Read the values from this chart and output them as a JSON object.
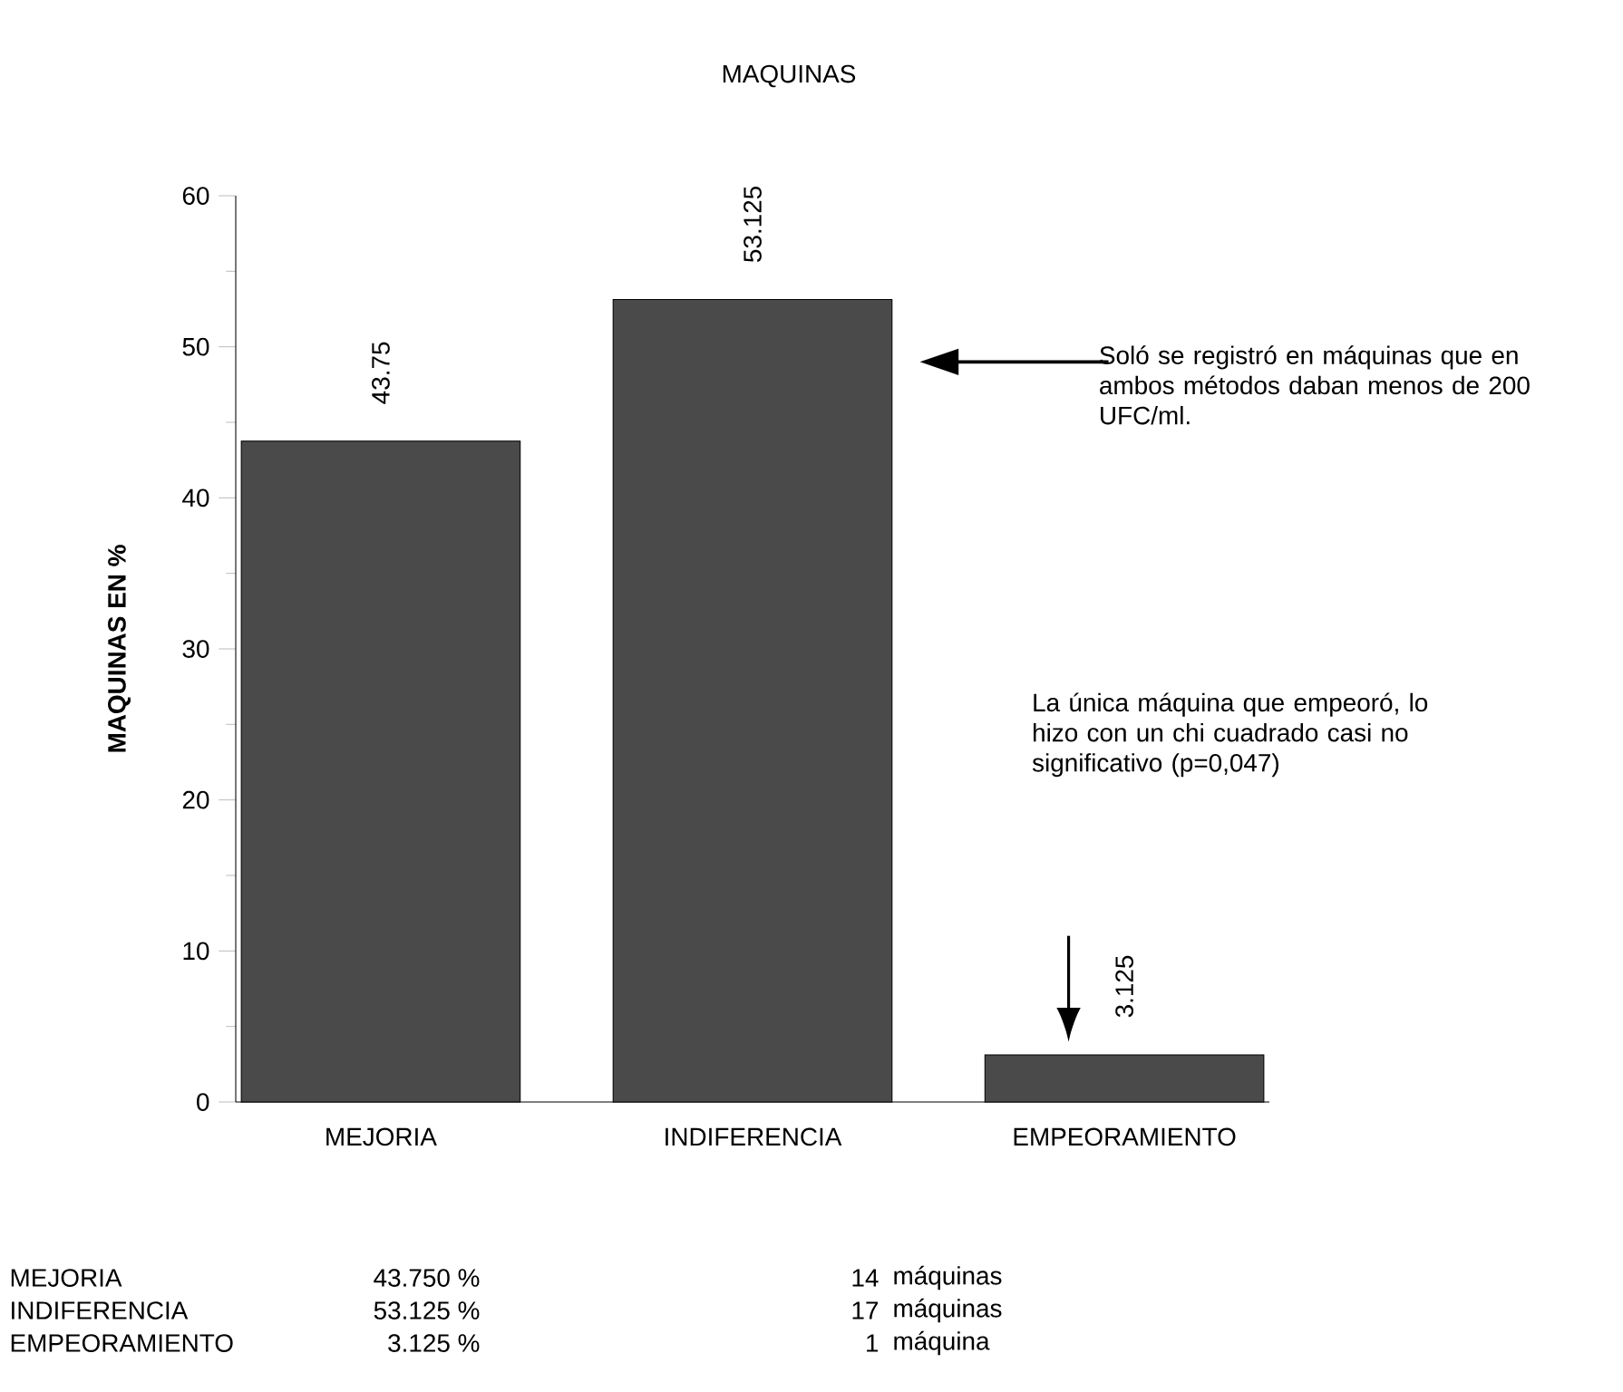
{
  "chart_data": {
    "type": "bar",
    "title": "MAQUINAS",
    "ylabel": "MAQUINAS EN %",
    "categories": [
      "MEJORIA",
      "INDIFERENCIA",
      "EMPEORAMIENTO"
    ],
    "values": [
      43.75,
      53.125,
      3.125
    ],
    "color": "#4a4a4a",
    "data_labels": true,
    "ylim": [
      0,
      60
    ],
    "yticks": [
      0,
      10,
      20,
      30,
      40,
      50,
      60
    ],
    "annotations": [
      "Soló se registró en máquinas que en ambos métodos daban menos de 200 UFC/ml.",
      "La única máquina que empeoró, lo hizo con un chi cuadrado casi no significativo (p=0,047)",
      "MEJORIA",
      "43.750 %",
      "14",
      "máquinas",
      "INDIFERENCIA",
      "53.125 %",
      "17",
      "máquinas",
      "EMPEORAMIENTO",
      "3.125 %",
      "1",
      "máquina"
    ]
  }
}
